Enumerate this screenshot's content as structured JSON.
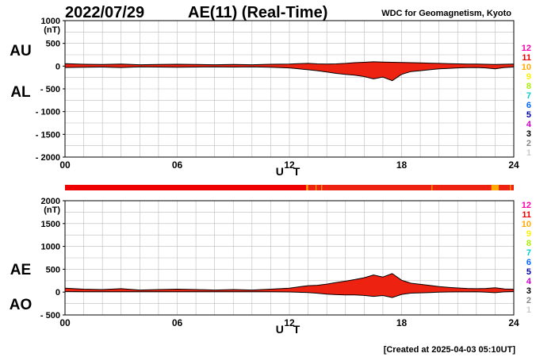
{
  "header": {
    "date": "2022/07/29",
    "title": "AE(11) (Real-Time)",
    "source": "WDC for Geomagnetism, Kyoto"
  },
  "footer": {
    "created": "[Created at 2025-04-03 05:10UT]"
  },
  "station_scale": {
    "levels": [
      "12",
      "11",
      "10",
      "9",
      "8",
      "7",
      "6",
      "5",
      "4",
      "3",
      "2",
      "1"
    ],
    "colors": [
      "#ff00aa",
      "#ee0000",
      "#ffaa00",
      "#ffee00",
      "#aaee00",
      "#00cccc",
      "#0066ff",
      "#0000aa",
      "#cc00cc",
      "#000000",
      "#888888",
      "#cccccc"
    ]
  },
  "coverage_bar": {
    "base_color": "#ee2211",
    "segments": [
      {
        "start": 0,
        "end": 12.9,
        "level": "11"
      },
      {
        "start": 12.9,
        "end": 13.0,
        "level": "10"
      },
      {
        "start": 13.4,
        "end": 13.45,
        "level": "10"
      },
      {
        "start": 13.7,
        "end": 13.75,
        "level": "10"
      },
      {
        "start": 19.6,
        "end": 19.65,
        "level": "10"
      },
      {
        "start": 22.8,
        "end": 23.2,
        "level": "10"
      },
      {
        "start": 23.8,
        "end": 23.85,
        "level": "10"
      }
    ]
  },
  "chart_data": [
    {
      "type": "area",
      "panel": "AU/AL",
      "labels_left": [
        "AU",
        "AL"
      ],
      "xlabel": "U T",
      "ylabel": "(nT)",
      "xlim": [
        0,
        24
      ],
      "ylim": [
        -2000,
        1000
      ],
      "xticks": [
        0,
        6,
        12,
        18,
        24
      ],
      "xtick_labels": [
        "00",
        "06",
        "12",
        "18",
        "24"
      ],
      "yticks": [
        1000,
        500,
        0,
        -500,
        -1000,
        -1500,
        -2000
      ],
      "ytick_labels": [
        "1000",
        "500",
        "0",
        "- 500",
        "- 1000",
        "- 1500",
        "- 2000"
      ],
      "grid": true,
      "fill_color": "#ee2211",
      "x": [
        0,
        1,
        2,
        3,
        4,
        5,
        6,
        7,
        8,
        9,
        10,
        11,
        12,
        12.5,
        13,
        13.5,
        14,
        14.5,
        15,
        15.5,
        16,
        16.5,
        17,
        17.5,
        18,
        18.5,
        19,
        19.5,
        20,
        20.5,
        21,
        21.5,
        22,
        22.5,
        23,
        23.5,
        24
      ],
      "series": [
        {
          "name": "AU",
          "values": [
            55,
            40,
            35,
            45,
            30,
            35,
            40,
            35,
            30,
            35,
            30,
            40,
            45,
            55,
            60,
            50,
            45,
            50,
            60,
            75,
            85,
            95,
            90,
            85,
            80,
            75,
            70,
            65,
            60,
            55,
            50,
            45,
            45,
            40,
            35,
            40,
            45
          ]
        },
        {
          "name": "AL",
          "values": [
            -30,
            -25,
            -20,
            -30,
            -15,
            -20,
            -25,
            -20,
            -15,
            -20,
            -15,
            -25,
            -40,
            -60,
            -80,
            -100,
            -130,
            -160,
            -180,
            -200,
            -230,
            -280,
            -240,
            -320,
            -180,
            -120,
            -100,
            -80,
            -60,
            -50,
            -40,
            -35,
            -30,
            -40,
            -60,
            -30,
            -20
          ]
        }
      ]
    },
    {
      "type": "area",
      "panel": "AE/AO",
      "labels_left": [
        "AE",
        "AO"
      ],
      "xlabel": "U T",
      "ylabel": "(nT)",
      "xlim": [
        0,
        24
      ],
      "ylim": [
        -500,
        2000
      ],
      "xticks": [
        0,
        6,
        12,
        18,
        24
      ],
      "xtick_labels": [
        "00",
        "06",
        "12",
        "18",
        "24"
      ],
      "yticks": [
        2000,
        1500,
        1000,
        500,
        0,
        -500
      ],
      "ytick_labels": [
        "2000",
        "1500",
        "1000",
        "500",
        "0",
        "- 500"
      ],
      "grid": true,
      "fill_color": "#ee2211",
      "x": [
        0,
        1,
        2,
        3,
        4,
        5,
        6,
        7,
        8,
        9,
        10,
        11,
        12,
        12.5,
        13,
        13.5,
        14,
        14.5,
        15,
        15.5,
        16,
        16.5,
        17,
        17.5,
        18,
        18.5,
        19,
        19.5,
        20,
        20.5,
        21,
        21.5,
        22,
        22.5,
        23,
        23.5,
        24
      ],
      "series": [
        {
          "name": "AE",
          "values": [
            85,
            65,
            55,
            75,
            45,
            55,
            65,
            55,
            45,
            55,
            45,
            65,
            85,
            115,
            140,
            150,
            175,
            210,
            240,
            275,
            315,
            375,
            330,
            405,
            260,
            195,
            170,
            145,
            120,
            105,
            90,
            80,
            75,
            80,
            95,
            70,
            65
          ]
        },
        {
          "name": "AO",
          "values": [
            12,
            8,
            8,
            8,
            8,
            8,
            8,
            8,
            8,
            8,
            8,
            8,
            3,
            -3,
            -10,
            -25,
            -43,
            -55,
            -60,
            -63,
            -73,
            -93,
            -75,
            -118,
            -50,
            -23,
            -15,
            -8,
            0,
            3,
            5,
            5,
            8,
            0,
            -13,
            5,
            13
          ]
        }
      ]
    }
  ]
}
